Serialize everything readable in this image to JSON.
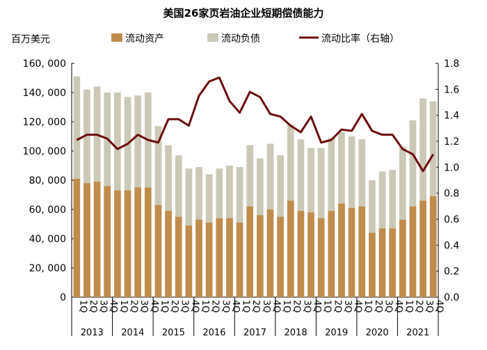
{
  "chart_data": {
    "type": "bar+line",
    "title": "美国26家页岩油企业短期偿债能力",
    "ylabel_left": "百万美元",
    "ylim_left": [
      0,
      160000
    ],
    "yticks_left": [
      "0",
      "20, 000",
      "40, 000",
      "60, 000",
      "80, 000",
      "100, 000",
      "120, 000",
      "140, 000",
      "160, 000"
    ],
    "ylim_right": [
      0,
      1.8
    ],
    "yticks_right": [
      "0.0",
      "0.2",
      "0.4",
      "0.6",
      "0.8",
      "1.0",
      "1.2",
      "1.4",
      "1.6",
      "1.8"
    ],
    "quarters": [
      "1Q",
      "2Q",
      "3Q",
      "4Q"
    ],
    "years": [
      "2013",
      "2014",
      "2015",
      "2016",
      "2017",
      "2018",
      "2019",
      "2020",
      "2021"
    ],
    "legend_position": "top",
    "grid": false,
    "series": [
      {
        "name": "流动资产",
        "type": "bar",
        "axis": "left",
        "color": "#c08c4b",
        "values": [
          81000,
          78000,
          79000,
          76000,
          73000,
          73000,
          75000,
          75000,
          63000,
          59000,
          55000,
          49000,
          53000,
          51000,
          54000,
          54000,
          51000,
          62000,
          56000,
          60000,
          55000,
          66000,
          59000,
          58000,
          54000,
          59000,
          64000,
          61000,
          62000,
          44000,
          47000,
          47000,
          53000,
          62000,
          66000,
          69000
        ]
      },
      {
        "name": "流动负债",
        "type": "bar",
        "axis": "left",
        "color": "#cbc9b5",
        "values": [
          151000,
          142000,
          144000,
          140000,
          140000,
          137000,
          138000,
          140000,
          117000,
          104000,
          97000,
          88000,
          89000,
          84000,
          88000,
          90000,
          89000,
          104000,
          95000,
          105000,
          97000,
          118000,
          108000,
          102000,
          102000,
          109000,
          113000,
          110000,
          108000,
          80000,
          86000,
          87000,
          103000,
          121000,
          136000,
          134000
        ]
      },
      {
        "name": "流动比率（右轴）",
        "type": "line",
        "axis": "right",
        "color": "#6b0d0d",
        "values": [
          1.21,
          1.25,
          1.25,
          1.22,
          1.14,
          1.18,
          1.25,
          1.21,
          1.19,
          1.37,
          1.37,
          1.32,
          1.55,
          1.66,
          1.69,
          1.51,
          1.42,
          1.58,
          1.54,
          1.41,
          1.39,
          1.32,
          1.27,
          1.39,
          1.19,
          1.21,
          1.29,
          1.28,
          1.41,
          1.28,
          1.25,
          1.25,
          1.14,
          1.1,
          0.97,
          1.1
        ]
      }
    ]
  }
}
